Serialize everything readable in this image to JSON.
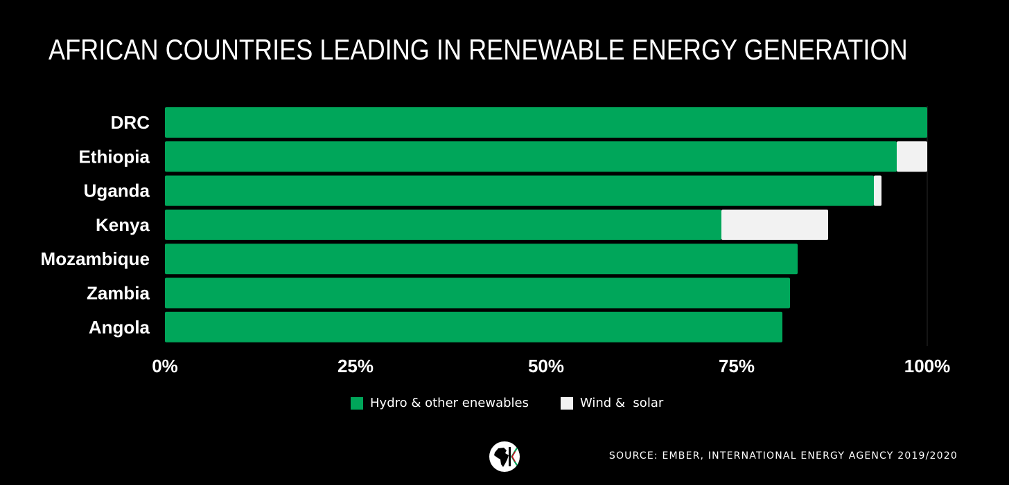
{
  "colors": {
    "background": "#000000",
    "hydro": "#00A65A",
    "wind_solar": "#F2F2F2",
    "text": "#FFFFFF"
  },
  "logo_icon": "africa-map-logo",
  "source": "SOURCE: EMBER, INTERNATIONAL ENERGY AGENCY 2019/2020",
  "chart_data": {
    "type": "bar",
    "orientation": "horizontal",
    "stacked": true,
    "title": "AFRICAN COUNTRIES LEADING IN RENEWABLE ENERGY GENERATION",
    "categories": [
      "DRC",
      "Ethiopia",
      "Uganda",
      "Kenya",
      "Mozambique",
      "Zambia",
      "Angola"
    ],
    "series": [
      {
        "name": "Hydro & other enewables",
        "color": "#00A65A",
        "values": [
          100,
          96,
          93,
          73,
          83,
          82,
          81
        ]
      },
      {
        "name": "Wind &  solar",
        "color": "#F2F2F2",
        "values": [
          0,
          4,
          1,
          14,
          0,
          0,
          0
        ]
      }
    ],
    "xlim": [
      0,
      100
    ],
    "xticks": [
      0,
      25,
      50,
      75,
      100
    ],
    "xtick_labels": [
      "0%",
      "25%",
      "50%",
      "75%",
      "100%"
    ],
    "grid": false,
    "legend_position": "bottom"
  }
}
